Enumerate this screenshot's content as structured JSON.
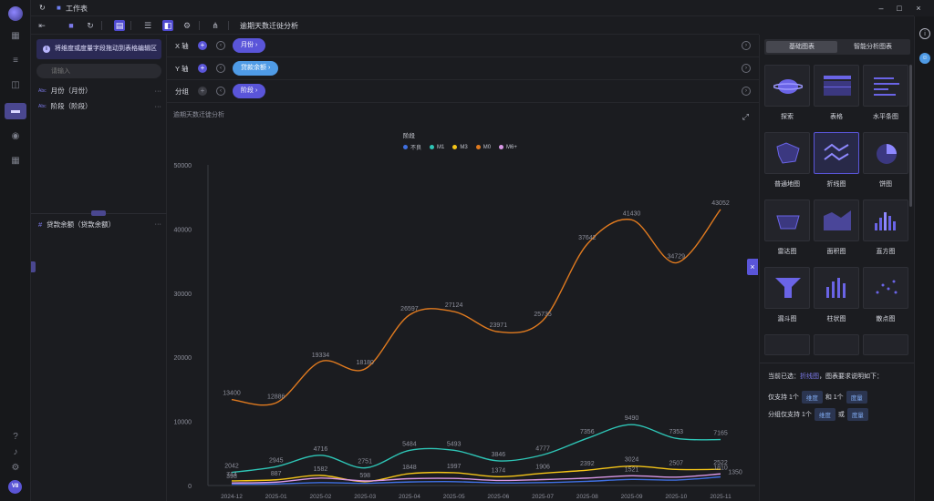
{
  "window": {
    "title": "工作表"
  },
  "toolbar": {
    "worksheet_name": "逾期天数迁徙分析"
  },
  "field_panel": {
    "hint": "将维度或度量字段拖动到表格编辑区",
    "search_placeholder": "请输入",
    "dimensions": [
      {
        "label": "月份（月份）"
      },
      {
        "label": "阶段（阶段）"
      }
    ],
    "measures": [
      {
        "label": "贷款余额（贷款余额）"
      }
    ]
  },
  "axes": {
    "x": {
      "label": "X 轴",
      "pill": "月份 ›"
    },
    "y": {
      "label": "Y 轴",
      "pill": "贷款余额 ›"
    },
    "group": {
      "label": "分组",
      "pill": "阶段 ›"
    }
  },
  "chart_panel": {
    "title": "逾期天数迁徙分析",
    "legend_title": "阶段"
  },
  "chart_data": {
    "type": "line",
    "categories": [
      "2024-12",
      "2025-01",
      "2025-02",
      "2025-03",
      "2025-04",
      "2025-05",
      "2025-06",
      "2025-07",
      "2025-08",
      "2025-09",
      "2025-10",
      "2025-11"
    ],
    "ylim": [
      0,
      50000
    ],
    "yticks": [
      "0",
      "10000",
      "20000",
      "30000",
      "40000",
      "50000"
    ],
    "grid": false,
    "legend_position": "top-center",
    "series": [
      {
        "name": "不良",
        "color": "#3f6fe0",
        "values": [
          200,
          250,
          450,
          350,
          550,
          600,
          400,
          450,
          650,
          950,
          850,
          1350
        ],
        "labels": [
          "",
          "",
          "",
          "",
          "",
          "",
          "",
          "",
          "",
          "",
          "",
          ""
        ]
      },
      {
        "name": "M1",
        "color": "#2ec5b6",
        "values": [
          2042,
          2945,
          4716,
          2751,
          5484,
          5493,
          3846,
          4777,
          7356,
          9490,
          7353,
          7165
        ],
        "labels": [
          "2042",
          "2945",
          "4716",
          "2751",
          "5484",
          "5493",
          "3846",
          "4777",
          "7356",
          "9490",
          "7353",
          "7165"
        ]
      },
      {
        "name": "M3",
        "color": "#f5c518",
        "values": [
          714,
          887,
          1582,
          598,
          1848,
          1997,
          1374,
          1906,
          2392,
          3024,
          2507,
          2522
        ],
        "labels": [
          "714",
          "887",
          "1582",
          "598",
          "1848",
          "1997",
          "1374",
          "1906",
          "2392",
          "3024",
          "2507",
          "2522"
        ]
      },
      {
        "name": "M0",
        "color": "#e07a1f",
        "values": [
          13400,
          12886,
          19334,
          18180,
          26597,
          27124,
          23971,
          25735,
          37642,
          41430,
          34729,
          43052
        ],
        "labels": [
          "13400",
          "12886",
          "19334",
          "18180",
          "26597",
          "27124",
          "23971",
          "25735",
          "37642",
          "41430",
          "34729",
          "43052"
        ]
      },
      {
        "name": "M6+",
        "color": "#d998e6",
        "values": [
          398,
          521,
          1167,
          712,
          1065,
          1104,
          791,
          922,
          1153,
          1521,
          1310,
          1810
        ],
        "labels": [
          "398",
          "",
          "",
          "",
          "",
          "",
          "",
          "",
          "",
          "1521",
          "",
          "1810"
        ]
      }
    ],
    "last_label_extra": "1350"
  },
  "type_panel": {
    "tabs": [
      "基础图表",
      "智能分析图表"
    ],
    "types": [
      "探索",
      "表格",
      "水平条图",
      "普通地图",
      "折线图",
      "饼图",
      "雷达图",
      "面积图",
      "直方图",
      "漏斗图",
      "柱状图",
      "散点图"
    ],
    "selected_prefix": "当前已选：",
    "selected_type": "折线图",
    "selected_suffix": "，图表要求说明如下：",
    "req1": {
      "pre": "仅支持 1个",
      "a": "维度",
      "mid": "和 1个",
      "b": "度量"
    },
    "req2": {
      "pre": "分组仅支持 1个",
      "a": "维度",
      "mid": "或",
      "b": "度量"
    }
  },
  "user": {
    "initials": "V8"
  },
  "colors": {
    "accent": "#5a55d9",
    "bg": "#1b1c20"
  }
}
